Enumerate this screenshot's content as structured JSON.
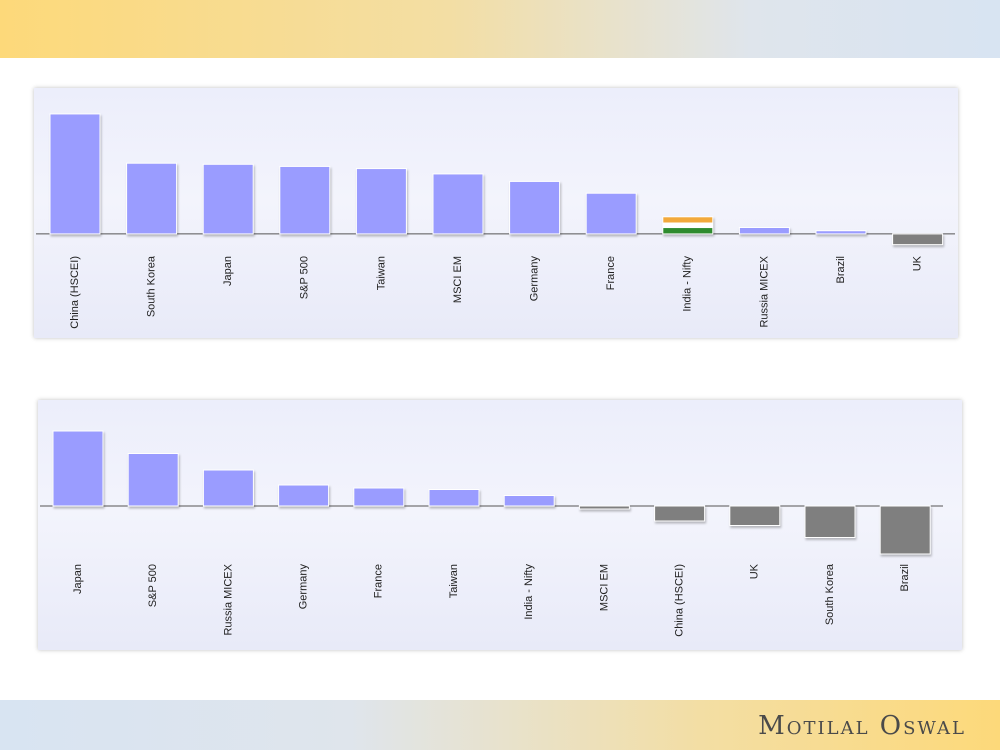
{
  "brand": {
    "text": "Motilal Oswal"
  },
  "colors": {
    "positive": "#9a9cff",
    "negative": "#7f7f7f",
    "india_saffron": "#f2a93b",
    "india_white": "#ffffff",
    "india_green": "#2e8b2e"
  },
  "chart_data": [
    {
      "type": "bar",
      "categories": [
        "China (HSCEI)",
        "South Korea",
        "Japan",
        "S&P 500",
        "Taiwan",
        "MSCI EM",
        "Germany",
        "France",
        "India - Nifty",
        "Russia MICEX",
        "Brazil",
        "UK"
      ],
      "values": [
        112,
        66,
        65,
        63,
        61,
        56,
        49,
        38,
        16,
        6,
        3,
        -10
      ],
      "title": "",
      "xlabel": "",
      "ylabel": "",
      "ylim": [
        -15,
        125
      ],
      "grid": false,
      "highlight": "India - Nifty"
    },
    {
      "type": "bar",
      "categories": [
        "Japan",
        "S&P 500",
        "Russia MICEX",
        "Germany",
        "France",
        "Taiwan",
        "India - Nifty",
        "MSCI EM",
        "China (HSCEI)",
        "UK",
        "South Korea",
        "Brazil"
      ],
      "values": [
        50,
        35,
        24,
        14,
        12,
        11,
        7,
        -2,
        -10,
        -13,
        -21,
        -32
      ],
      "title": "",
      "xlabel": "",
      "ylabel": "",
      "ylim": [
        -40,
        60
      ],
      "grid": false
    }
  ]
}
